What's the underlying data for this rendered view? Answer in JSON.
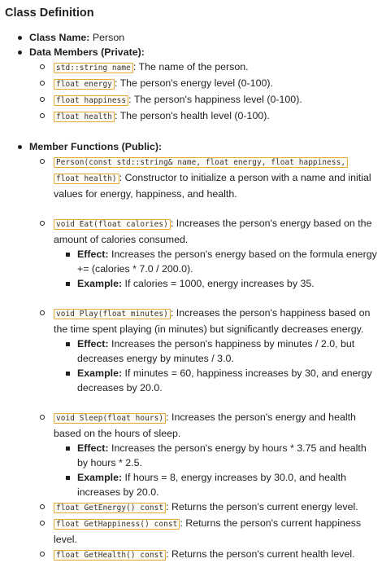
{
  "title": "Class Definition",
  "class_name": {
    "label": "Class Name:",
    "value": "Person"
  },
  "data_members": {
    "label": "Data Members (Private):",
    "items": [
      {
        "code": "std::string name",
        "desc": ": The name of the person."
      },
      {
        "code": "float energy",
        "desc": ": The person's energy level (0-100)."
      },
      {
        "code": "float happiness",
        "desc": ": The person's happiness level (0-100)."
      },
      {
        "code": "float health",
        "desc": ": The person's health level (0-100)."
      }
    ]
  },
  "member_functions": {
    "label": "Member Functions (Public):",
    "constructor": {
      "code_a": "Person(const std::string& name, float energy, float happiness,",
      "code_b": "float health)",
      "desc": ": Constructor to initialize a person with a name and initial values for energy, happiness, and health."
    },
    "eat": {
      "code": "void Eat(float calories)",
      "desc": ": Increases the person's energy based on the amount of calories consumed.",
      "effect_label": "Effect:",
      "effect": " Increases the person's  energy based on the formula energy += (calories * 7.0 / 200.0).",
      "example_label": "Example:",
      "example": " If calories = 1000, energy increases by 35."
    },
    "play": {
      "code": "void Play(float minutes)",
      "desc": ": Increases the person's happiness based on the time spent playing (in minutes) but significantly decreases energy.",
      "effect_label": "Effect:",
      "effect": " Increases the person's  happiness by minutes / 2.0, but decreases energy by minutes / 3.0.",
      "example_label": "Example:",
      "example": " If minutes = 60, happiness increases by 30, and energy decreases by 20.0."
    },
    "sleep": {
      "code": "void Sleep(float hours)",
      "desc": ": Increases the person's energy and health based on the hours of sleep.",
      "effect_label": "Effect:",
      "effect": " Increases the person's energy by hours * 3.75 and health by hours * 2.5.",
      "example_label": "Example:",
      "example": " If hours = 8, energy increases by 30.0, and health increases by 20.0."
    },
    "getters": [
      {
        "code": "float GetEnergy() const",
        "desc": ": Returns the person's current energy level."
      },
      {
        "code": "float GetHappiness() const",
        "desc": ": Returns the person's current happiness level."
      },
      {
        "code": "float GetHealth() const",
        "desc": ": Returns the person's current health level."
      }
    ]
  }
}
